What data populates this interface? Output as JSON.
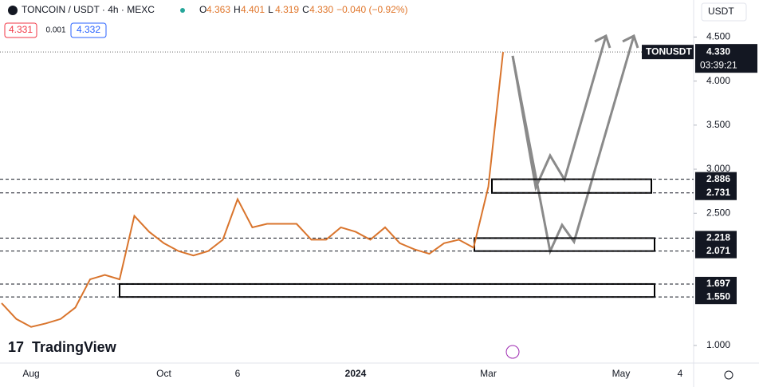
{
  "chart_data": {
    "type": "line",
    "title": "TONCOIN / USDT · 4h · MEXC",
    "ohlc": [
      {
        "key": "O",
        "value": 4.363
      },
      {
        "key": "H",
        "value": 4.401
      },
      {
        "key": "L",
        "value": 4.319
      },
      {
        "key": "C",
        "value": {
          "value": 4.33,
          "label": "4.330"
        }
      }
    ],
    "change": "−0.040 (−0.92%)",
    "bid": 4.331,
    "spread": 0.001,
    "ask": 4.332,
    "currency": "USDT",
    "brand": "TradingView",
    "color": "#d9742c",
    "categories": [
      null,
      null,
      "Aug",
      null,
      null,
      null,
      null,
      null,
      null,
      null,
      null,
      "Oct",
      null,
      null,
      null,
      null,
      "6",
      null,
      null,
      null,
      null,
      null,
      null,
      null,
      "2024",
      null,
      null,
      null,
      null,
      null,
      null,
      null,
      null,
      "Mar",
      null,
      null,
      null,
      null,
      null,
      null,
      null,
      null,
      "May",
      null,
      null,
      null,
      "4"
    ],
    "values": [
      1.48,
      1.3,
      1.21,
      1.25,
      1.3,
      1.43,
      1.75,
      1.8,
      1.75,
      2.47,
      2.29,
      2.16,
      2.07,
      2.02,
      2.07,
      2.2,
      2.66,
      2.34,
      2.38,
      2.38,
      2.38,
      2.2,
      2.2,
      2.34,
      2.29,
      2.2,
      2.34,
      2.16,
      2.09,
      2.04,
      2.16,
      2.2,
      2.11,
      2.8,
      4.33,
      null,
      null,
      null,
      null,
      null,
      null,
      null,
      null,
      null,
      null,
      null,
      null
    ],
    "ylim": [
      0.8,
      4.92
    ],
    "yticks": [
      {
        "value": 1,
        "label": "1.000"
      },
      {
        "value": 2.5,
        "label": "2.500"
      },
      {
        "value": 3,
        "label": "3.000"
      },
      {
        "value": 3.5,
        "label": "3.500"
      },
      {
        "value": 4,
        "label": "4.000"
      },
      {
        "value": 4.5,
        "label": "4.500"
      }
    ],
    "levels": [
      2.886,
      2.731,
      2.218,
      2.071,
      1.697,
      {
        "value": 1.55,
        "label": "1.550"
      }
    ],
    "price_label": {
      "symbol": "TONUSDT",
      "value": {
        "value": 4.33,
        "label": "4.330"
      },
      "countdown": "03:39:21"
    }
  }
}
